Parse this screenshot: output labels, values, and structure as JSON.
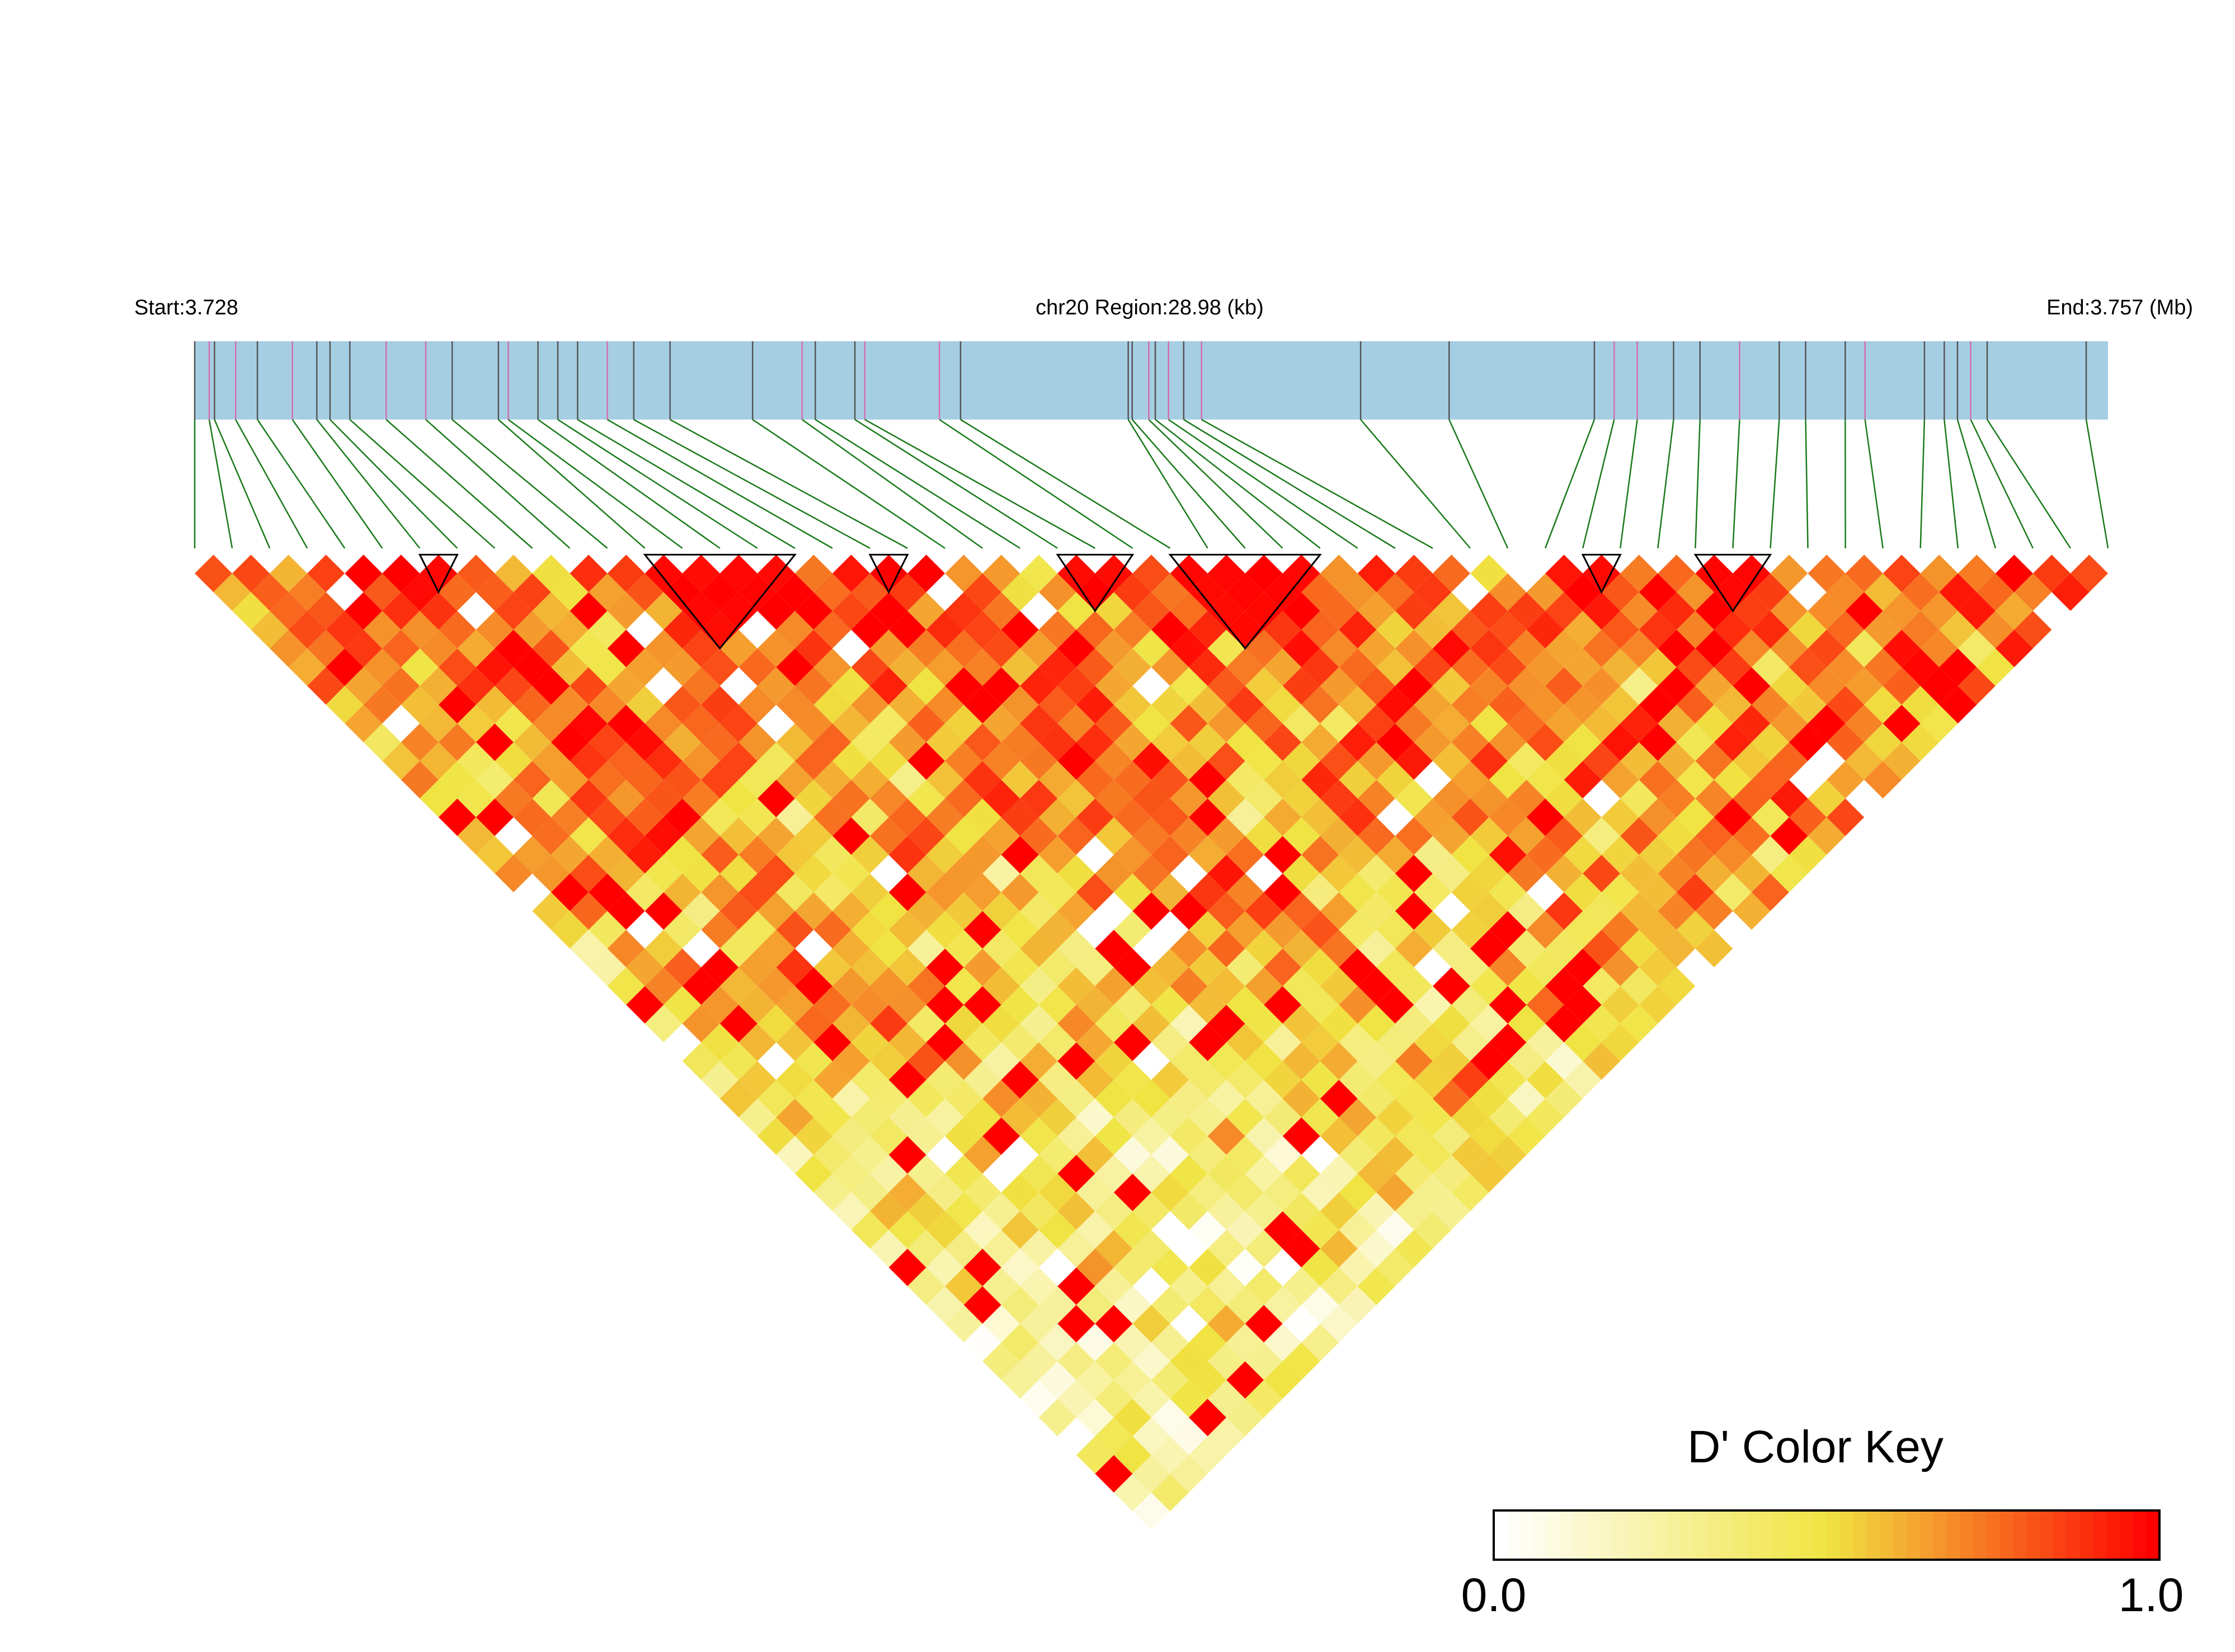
{
  "header": {
    "start_label": "Start:3.728",
    "region_label": "chr20 Region:28.98 (kb)",
    "end_label": "End:3.757 (Mb)"
  },
  "colors": {
    "track_fill": "#a6cee3",
    "snp_tick_default": "#555555",
    "snp_tick_alt": "#d36fb0",
    "connector": "#1a7a1a",
    "block_outline": "#000000",
    "scale_low": "#ffffff",
    "scale_mid": "#f0e442",
    "scale_high": "#ff0000"
  },
  "color_key": {
    "title": "D' Color Key",
    "min_label": "0.0",
    "max_label": "1.0"
  },
  "chart_data": {
    "type": "heatmap",
    "description_metric": "D'",
    "region": {
      "chromosome": "chr20",
      "start_mb": 3.728,
      "end_mb": 3.757,
      "length_kb": 28.98
    },
    "n_snps": 52,
    "snp_positions_kb": [
      0.0,
      0.22,
      0.3,
      0.62,
      0.95,
      1.48,
      1.85,
      2.05,
      2.35,
      2.9,
      3.5,
      3.9,
      4.6,
      4.75,
      5.2,
      5.5,
      5.8,
      6.25,
      6.65,
      7.2,
      8.45,
      9.2,
      9.4,
      10.0,
      10.15,
      11.28,
      11.6,
      14.14,
      14.2,
      14.45,
      14.55,
      14.75,
      14.98,
      15.25,
      17.66,
      19.0,
      21.2,
      21.5,
      21.85,
      22.4,
      22.8,
      23.4,
      24.0,
      24.4,
      25.0,
      25.3,
      26.2,
      26.5,
      26.7,
      26.9,
      27.15,
      28.65
    ],
    "haplotype_blocks": [
      {
        "from": 6,
        "to": 7
      },
      {
        "from": 12,
        "to": 16
      },
      {
        "from": 18,
        "to": 19
      },
      {
        "from": 23,
        "to": 25
      },
      {
        "from": 26,
        "to": 30
      },
      {
        "from": 37,
        "to": 38
      },
      {
        "from": 40,
        "to": 42
      }
    ],
    "d_prime_seed": 20357,
    "value_range": [
      0.0,
      1.0
    ],
    "color_scale": [
      "#ffffff",
      "#f0e442",
      "#ff0000"
    ]
  }
}
